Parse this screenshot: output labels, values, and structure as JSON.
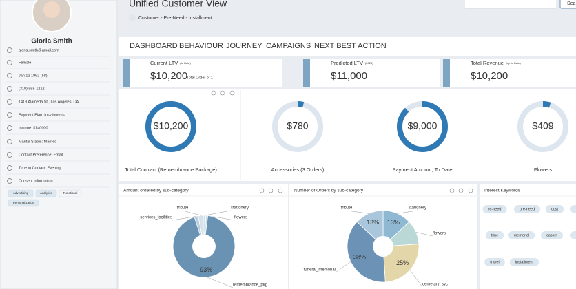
{
  "header": {
    "title": "Unified Customer View",
    "subtitle": "Customer - Pre-Need - Installment",
    "search": "Sea"
  },
  "sidebar": {
    "name": "Gloria Smith",
    "items": [
      "gloria.smith@gmail.com",
      "Female",
      "Jan 12 1962 (58)",
      "(310) 555-1212",
      "1413 Alameda St., Los Angeles, CA",
      "Payment Plan: Installments",
      "Income: $140000",
      "Marital Status: Married",
      "Contact Preference: Email",
      "Time to Contact: Evening",
      "Consent Information"
    ],
    "consent_tags": [
      "Advertising",
      "Analytics",
      "Functional",
      "Personalization"
    ]
  },
  "tabs": [
    "DASHBOARD",
    "BEHAVIOUR",
    "JOURNEY",
    "CAMPAIGNS",
    "NEXT BEST ACTION"
  ],
  "kpis": [
    {
      "label": "Current LTV",
      "note": "(to Date)",
      "value": "$10,200",
      "sub": "Total Order of 1"
    },
    {
      "label": "Predicted LTV",
      "note": "(2026)",
      "value": "$11,000"
    },
    {
      "label": "Total Revenue",
      "note": "(Up to Date)",
      "value": "$10,200"
    }
  ],
  "gauges": [
    {
      "value": "$10,200",
      "label": "Total Contract (Remembrance Package)",
      "fraction": 100
    },
    {
      "value": "$780",
      "label": "Accessories (3 Orders)",
      "fraction": 4
    },
    {
      "value": "$9,000",
      "label": "Payment Amount, To Date",
      "fraction": 88
    },
    {
      "value": "$409",
      "label": "Flowers",
      "fraction": 5
    }
  ],
  "charts": [
    {
      "type": "pie",
      "title": "Amount ordered by sub-category",
      "categories": [
        "stationery",
        "flowers",
        "remembrance_pkg",
        "services_facilities",
        "tribute"
      ],
      "values": [
        1,
        1,
        93,
        2,
        3
      ],
      "value_labels": [
        null,
        null,
        "93%",
        null,
        null
      ],
      "colors": [
        "#a9c6dc",
        "#c9dde8",
        "#6a93b3",
        "#b7cddd",
        "#d4e2ec"
      ]
    },
    {
      "type": "pie",
      "title": "Number of Orders by sub-category",
      "categories": [
        "stationery",
        "flowers",
        "cemetary_svc",
        "funeral_memorial",
        "tribute"
      ],
      "values": [
        13,
        11,
        25,
        38,
        13
      ],
      "value_labels": [
        "13%",
        null,
        "25%",
        "38%",
        "13%"
      ],
      "colors": [
        "#8fb8d3",
        "#b9d8d6",
        "#e3d6a8",
        "#6c93b5",
        "#a9c6dc"
      ]
    }
  ],
  "keywords": {
    "title": "Interest Keywords",
    "tags": [
      "re-need",
      "pre-need",
      "cost",
      "time",
      "memorial",
      "casket",
      "travel",
      "installment"
    ]
  }
}
